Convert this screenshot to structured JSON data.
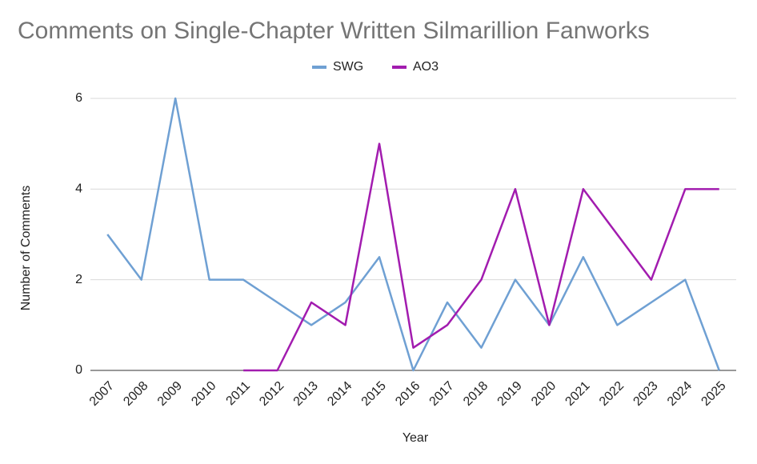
{
  "chart_data": {
    "type": "line",
    "title": "Comments on Single-Chapter Written Silmarillion Fanworks",
    "x_label": "Year",
    "y_label": "Number of Comments",
    "categories": [
      "2007",
      "2008",
      "2009",
      "2010",
      "2011",
      "2012",
      "2013",
      "2014",
      "2015",
      "2016",
      "2017",
      "2018",
      "2019",
      "2020",
      "2021",
      "2022",
      "2023",
      "2024",
      "2025"
    ],
    "series": [
      {
        "name": "SWG",
        "color": "#6fa0d3",
        "values": [
          3,
          2,
          6,
          2,
          2,
          1.5,
          1,
          1.5,
          2.5,
          0,
          1.5,
          0.5,
          2,
          1,
          2.5,
          1,
          1.5,
          2,
          0
        ]
      },
      {
        "name": "AO3",
        "color": "#a21caf",
        "values": [
          null,
          null,
          null,
          null,
          0,
          0,
          1.5,
          1,
          5,
          0.5,
          1,
          2,
          4,
          1,
          4,
          3,
          2,
          4,
          4
        ]
      }
    ],
    "ylim": [
      0,
      6
    ],
    "yticks": [
      0,
      2,
      4,
      6
    ],
    "grid": true,
    "legend": "top"
  }
}
